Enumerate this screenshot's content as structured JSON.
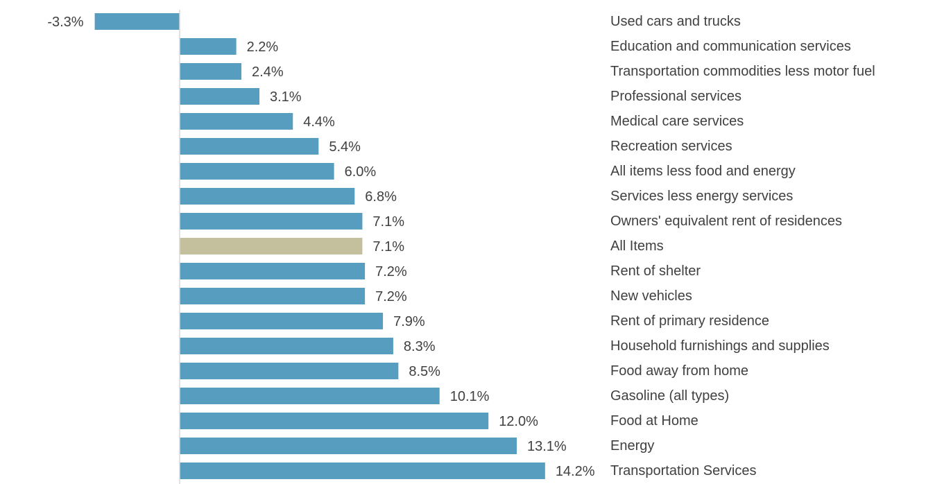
{
  "chart_data": {
    "type": "bar",
    "orientation": "horizontal",
    "title": "",
    "xlabel": "",
    "ylabel": "",
    "grid": false,
    "legend": "none",
    "categories": [
      "Used cars and trucks",
      "Education and communication services",
      "Transportation commodities less motor fuel",
      "Professional services",
      "Medical care services",
      "Recreation services",
      "All items less food and energy",
      "Services less energy services",
      "Owners' equivalent rent of residences",
      "All Items",
      "Rent of shelter",
      "New vehicles",
      "Rent of primary residence",
      "Household furnishings and supplies",
      "Food away from home",
      "Gasoline (all types)",
      "Food at Home",
      "Energy",
      "Transportation Services"
    ],
    "values": [
      -3.3,
      2.2,
      2.4,
      3.1,
      4.4,
      5.4,
      6.0,
      6.8,
      7.1,
      7.1,
      7.2,
      7.2,
      7.9,
      8.3,
      8.5,
      10.1,
      12.0,
      13.1,
      14.2
    ],
    "data_labels": [
      "-3.3%",
      "2.2%",
      "2.4%",
      "3.1%",
      "4.4%",
      "5.4%",
      "6.0%",
      "6.8%",
      "7.1%",
      "7.1%",
      "7.2%",
      "7.2%",
      "7.9%",
      "8.3%",
      "8.5%",
      "10.1%",
      "12.0%",
      "13.1%",
      "14.2%"
    ],
    "highlight_category": "All Items",
    "colors": {
      "bar": "#569dc0",
      "highlight": "#c4c09e",
      "axis": "#d9d9d9",
      "text": "#404040"
    }
  }
}
